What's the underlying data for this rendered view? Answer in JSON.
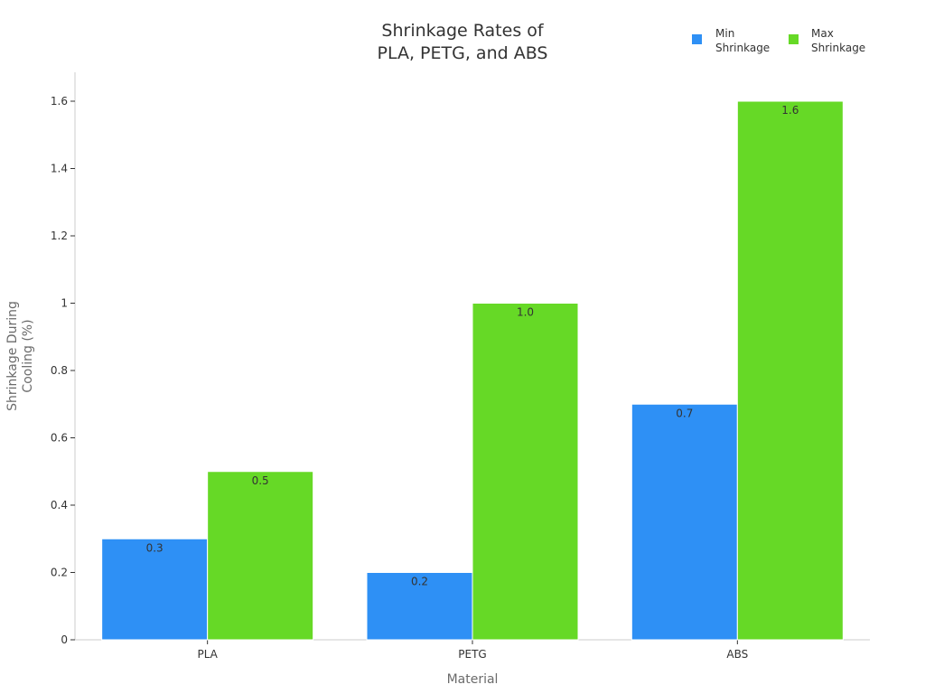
{
  "chart_data": {
    "type": "bar",
    "title": [
      "Shrinkage Rates of",
      "PLA, PETG, and ABS"
    ],
    "xlabel": "Material",
    "ylabel": [
      "Shrinkage During",
      "Cooling (%)"
    ],
    "categories": [
      "PLA",
      "PETG",
      "ABS"
    ],
    "series": [
      {
        "name": [
          "Min",
          "Shrinkage"
        ],
        "color": "#2e90f5",
        "values": [
          0.3,
          0.2,
          0.7
        ],
        "labels": [
          "0.3",
          "0.2",
          "0.7"
        ]
      },
      {
        "name": [
          "Max",
          "Shrinkage"
        ],
        "color": "#66d926",
        "values": [
          0.5,
          1.0,
          1.6
        ],
        "labels": [
          "0.5",
          "1.0",
          "1.6"
        ]
      }
    ],
    "ylim": [
      0,
      1.68
    ],
    "yticks": [
      0,
      0.2,
      0.4,
      0.6,
      0.8,
      1,
      1.2,
      1.4,
      1.6
    ],
    "ytick_labels": [
      "0",
      "0.2",
      "0.4",
      "0.6",
      "0.8",
      "1",
      "1.2",
      "1.4",
      "1.6"
    ],
    "grid": false,
    "legend_position": "top-right"
  }
}
